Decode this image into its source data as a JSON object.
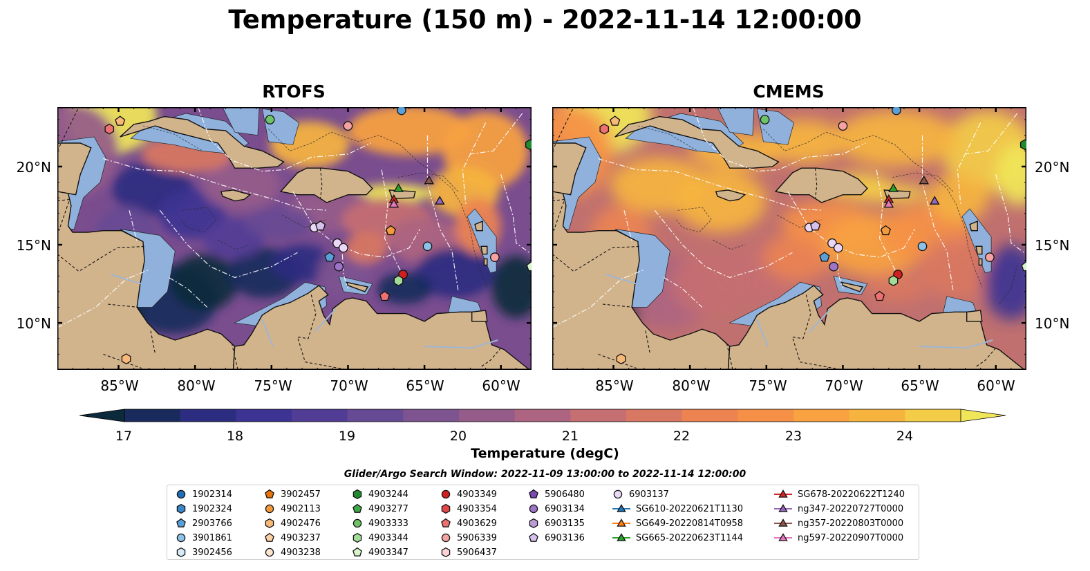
{
  "title": "Temperature (150 m) - 2022-11-14 12:00:00",
  "panels": [
    {
      "title": "RTOFS",
      "variant": "rtofs"
    },
    {
      "title": "CMEMS",
      "variant": "cmems"
    }
  ],
  "lat_labels": [
    "20°N",
    "15°N",
    "10°N"
  ],
  "lon_labels": [
    "85°W",
    "80°W",
    "75°W",
    "70°W",
    "65°W",
    "60°W"
  ],
  "colorbar": {
    "ticks": [
      "17",
      "18",
      "19",
      "20",
      "21",
      "22",
      "23",
      "24"
    ],
    "label": "Temperature (degC)",
    "range": [
      17.0,
      24.5
    ],
    "colors": [
      "#0b2b3c",
      "#182b5c",
      "#2c2d80",
      "#3c3392",
      "#513d96",
      "#674a94",
      "#7d5390",
      "#955c8a",
      "#ad6480",
      "#c66f72",
      "#d97862",
      "#ec8351",
      "#f59046",
      "#f8a241",
      "#f6b43f",
      "#f3cc48",
      "#f0e659"
    ]
  },
  "legend": {
    "title": "Glider/Argo Search Window: 2022-11-09 13:00:00 to 2022-11-14 12:00:00",
    "columns": [
      [
        {
          "label": "1902314",
          "marker": "circle",
          "color": "#1f6fb4"
        },
        {
          "label": "1902324",
          "marker": "hexagon",
          "color": "#3a86c8"
        },
        {
          "label": "2903766",
          "marker": "pentagon",
          "color": "#5aa0d8"
        },
        {
          "label": "3901861",
          "marker": "circle",
          "color": "#8cc1e8"
        },
        {
          "label": "3902456",
          "marker": "hexagon",
          "color": "#d6eaf8"
        }
      ],
      [
        {
          "label": "3902457",
          "marker": "pentagon",
          "color": "#e8730c"
        },
        {
          "label": "4902113",
          "marker": "circle",
          "color": "#f59a3c"
        },
        {
          "label": "4902476",
          "marker": "hexagon",
          "color": "#f8b878"
        },
        {
          "label": "4903237",
          "marker": "pentagon",
          "color": "#fbd1a4"
        },
        {
          "label": "4903238",
          "marker": "circle",
          "color": "#fde6cf"
        }
      ],
      [
        {
          "label": "4903244",
          "marker": "hexagon",
          "color": "#1f8a2e"
        },
        {
          "label": "4903277",
          "marker": "pentagon",
          "color": "#3da84a"
        },
        {
          "label": "4903333",
          "marker": "circle",
          "color": "#6cc466"
        },
        {
          "label": "4903344",
          "marker": "hexagon",
          "color": "#a2dc96"
        },
        {
          "label": "4903347",
          "marker": "pentagon",
          "color": "#d8f4cc"
        }
      ],
      [
        {
          "label": "4903349",
          "marker": "circle",
          "color": "#d01f1f"
        },
        {
          "label": "4903354",
          "marker": "hexagon",
          "color": "#e04848"
        },
        {
          "label": "4903629",
          "marker": "pentagon",
          "color": "#ee7070"
        },
        {
          "label": "5906339",
          "marker": "circle",
          "color": "#f7a2a2"
        },
        {
          "label": "5906437",
          "marker": "hexagon",
          "color": "#fcd2d2"
        }
      ],
      [
        {
          "label": "5906480",
          "marker": "pentagon",
          "color": "#7a4ab0"
        },
        {
          "label": "6903134",
          "marker": "circle",
          "color": "#9e74c8"
        },
        {
          "label": "6903135",
          "marker": "hexagon",
          "color": "#bb9ad8"
        },
        {
          "label": "6903136",
          "marker": "pentagon",
          "color": "#d6c0ec"
        }
      ],
      [
        {
          "label": "6903137",
          "marker": "circle",
          "color": "#ead8f6"
        },
        {
          "label": "SG610-20220621T1130",
          "marker": "triangle-line",
          "color": "#1f77b4"
        },
        {
          "label": "SG649-20220814T0958",
          "marker": "triangle-line",
          "color": "#ff7f0e"
        },
        {
          "label": "SG665-20220623T1144",
          "marker": "triangle-line",
          "color": "#2ca02c"
        }
      ],
      [
        {
          "label": "SG678-20220622T1240",
          "marker": "triangle-line",
          "color": "#d62728"
        },
        {
          "label": "ng347-20220727T0000",
          "marker": "triangle-line",
          "color": "#9467bd"
        },
        {
          "label": "ng357-20220803T0000",
          "marker": "triangle-line",
          "color": "#8c564b"
        },
        {
          "label": "ng597-20220907T0000",
          "marker": "triangle-line",
          "color": "#e377c2"
        }
      ]
    ]
  },
  "map_markers": [
    {
      "label": "4902476",
      "marker": "pentagon",
      "color": "#f8b878",
      "lon": -84.9,
      "lat": 22.9
    },
    {
      "label": "5906339",
      "marker": "hexagon",
      "color": "#ee7070",
      "lon": -85.6,
      "lat": 22.4
    },
    {
      "label": "4903333",
      "marker": "circle",
      "color": "#6cc466",
      "lon": -75.1,
      "lat": 23.0
    },
    {
      "label": "5906339",
      "marker": "circle",
      "color": "#f7a2a2",
      "lon": -70.0,
      "lat": 22.6
    },
    {
      "label": "1902314",
      "marker": "circle",
      "color": "#5aa0d8",
      "lon": -66.5,
      "lat": 23.6
    },
    {
      "label": "4903244",
      "marker": "hexagon",
      "color": "#1f8a2e",
      "lon": -58.1,
      "lat": 21.4
    },
    {
      "label": "SG665-20220623T1144",
      "marker": "triangle",
      "color": "#2ca02c",
      "lon": -66.7,
      "lat": 18.6
    },
    {
      "label": "ng357-20220803T0000",
      "marker": "triangle",
      "color": "#8c564b",
      "lon": -64.7,
      "lat": 19.1
    },
    {
      "label": "SG678-20220622T1240",
      "marker": "triangle",
      "color": "#d62728",
      "lon": -67.0,
      "lat": 17.9
    },
    {
      "label": "ng597-20220907T0000",
      "marker": "triangle",
      "color": "#e377c2",
      "lon": -67.0,
      "lat": 17.6
    },
    {
      "label": "ng347-20220727T0000",
      "marker": "triangle",
      "color": "#9467bd",
      "lon": -64.0,
      "lat": 17.8
    },
    {
      "label": "4902113",
      "marker": "pentagon",
      "color": "#f59a3c",
      "lon": -67.2,
      "lat": 15.9
    },
    {
      "label": "6903137",
      "marker": "circle",
      "color": "#ead8f6",
      "lon": -72.2,
      "lat": 16.1
    },
    {
      "label": "6903136",
      "marker": "pentagon",
      "color": "#d6c0ec",
      "lon": -71.8,
      "lat": 16.2
    },
    {
      "label": "6903137",
      "marker": "circle",
      "color": "#ead8f6",
      "lon": -70.7,
      "lat": 15.1
    },
    {
      "label": "6903137",
      "marker": "circle",
      "color": "#ead8f6",
      "lon": -70.3,
      "lat": 14.8
    },
    {
      "label": "6903134",
      "marker": "circle",
      "color": "#9e74c8",
      "lon": -70.6,
      "lat": 13.6
    },
    {
      "label": "2903766",
      "marker": "pentagon",
      "color": "#5aa0d8",
      "lon": -71.2,
      "lat": 14.2
    },
    {
      "label": "3901861",
      "marker": "circle",
      "color": "#8cc1e8",
      "lon": -64.8,
      "lat": 14.9
    },
    {
      "label": "5906339",
      "marker": "circle",
      "color": "#f7a2a2",
      "lon": -60.4,
      "lat": 14.2
    },
    {
      "label": "4903347",
      "marker": "pentagon",
      "color": "#d8f4cc",
      "lon": -58.0,
      "lat": 13.6
    },
    {
      "label": "4903349",
      "marker": "circle",
      "color": "#d01f1f",
      "lon": -66.4,
      "lat": 13.1
    },
    {
      "label": "4903344",
      "marker": "hexagon",
      "color": "#a2dc96",
      "lon": -66.7,
      "lat": 12.7
    },
    {
      "label": "4903629",
      "marker": "pentagon",
      "color": "#ee7070",
      "lon": -67.6,
      "lat": 11.7
    },
    {
      "label": "4903237",
      "marker": "hexagon",
      "color": "#f8b878",
      "lon": -84.5,
      "lat": 7.7
    }
  ]
}
